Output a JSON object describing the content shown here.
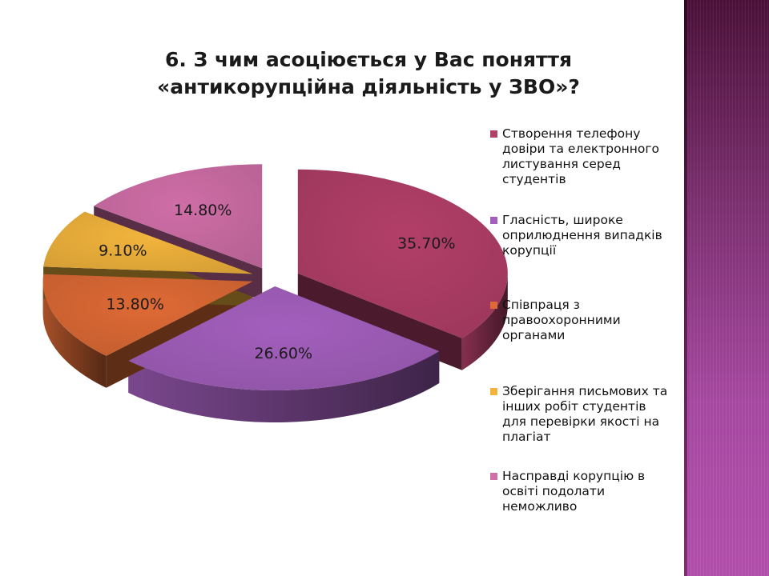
{
  "slide": {
    "title_lines": [
      "6. З чим асоціюється у Вас поняття",
      "«антикорупційна діяльність у ЗВО»?"
    ]
  },
  "chart_data": {
    "type": "pie",
    "title": "6. З чим асоціюється у Вас поняття «антикорупційна діяльність у ЗВО»?",
    "style": "3d-exploded",
    "legend_position": "right",
    "slices": [
      {
        "name": "Створення телефону довіри та електронного листування серед студентів",
        "value": 35.7,
        "label": "35.70%",
        "color": "#b23f68"
      },
      {
        "name": "Гласність, широке оприлюднення випадків корупції",
        "value": 26.6,
        "label": "26.60%",
        "color": "#a35fbd"
      },
      {
        "name": "Співпраця з правоохоронними органами",
        "value": 13.8,
        "label": "13.80%",
        "color": "#de6a35"
      },
      {
        "name": "Зберігання письмових та інших робіт студентів для перевірки якості на плагіат",
        "value": 9.1,
        "label": "9.10%",
        "color": "#f2b43c"
      },
      {
        "name": "Насправді корупцію в освіті подолати неможливо",
        "value": 14.8,
        "label": "14.80%",
        "color": "#cf6ea7"
      }
    ]
  },
  "legend": {
    "items": [
      {
        "lines": [
          "Створення телефону",
          "довіри та електронного",
          "листування серед",
          "студентів"
        ]
      },
      {
        "lines": [
          "Гласність, широке",
          "оприлюднення випадків",
          "корупції"
        ]
      },
      {
        "lines": [
          "Співпраця з",
          "правоохоронними",
          "органами"
        ]
      },
      {
        "lines": [
          "Зберігання письмових та",
          "інших робіт студентів",
          "для перевірки якості на",
          "плагіат"
        ]
      },
      {
        "lines": [
          "Насправді корупцію в",
          "освіті подолати",
          "неможливо"
        ]
      }
    ]
  }
}
